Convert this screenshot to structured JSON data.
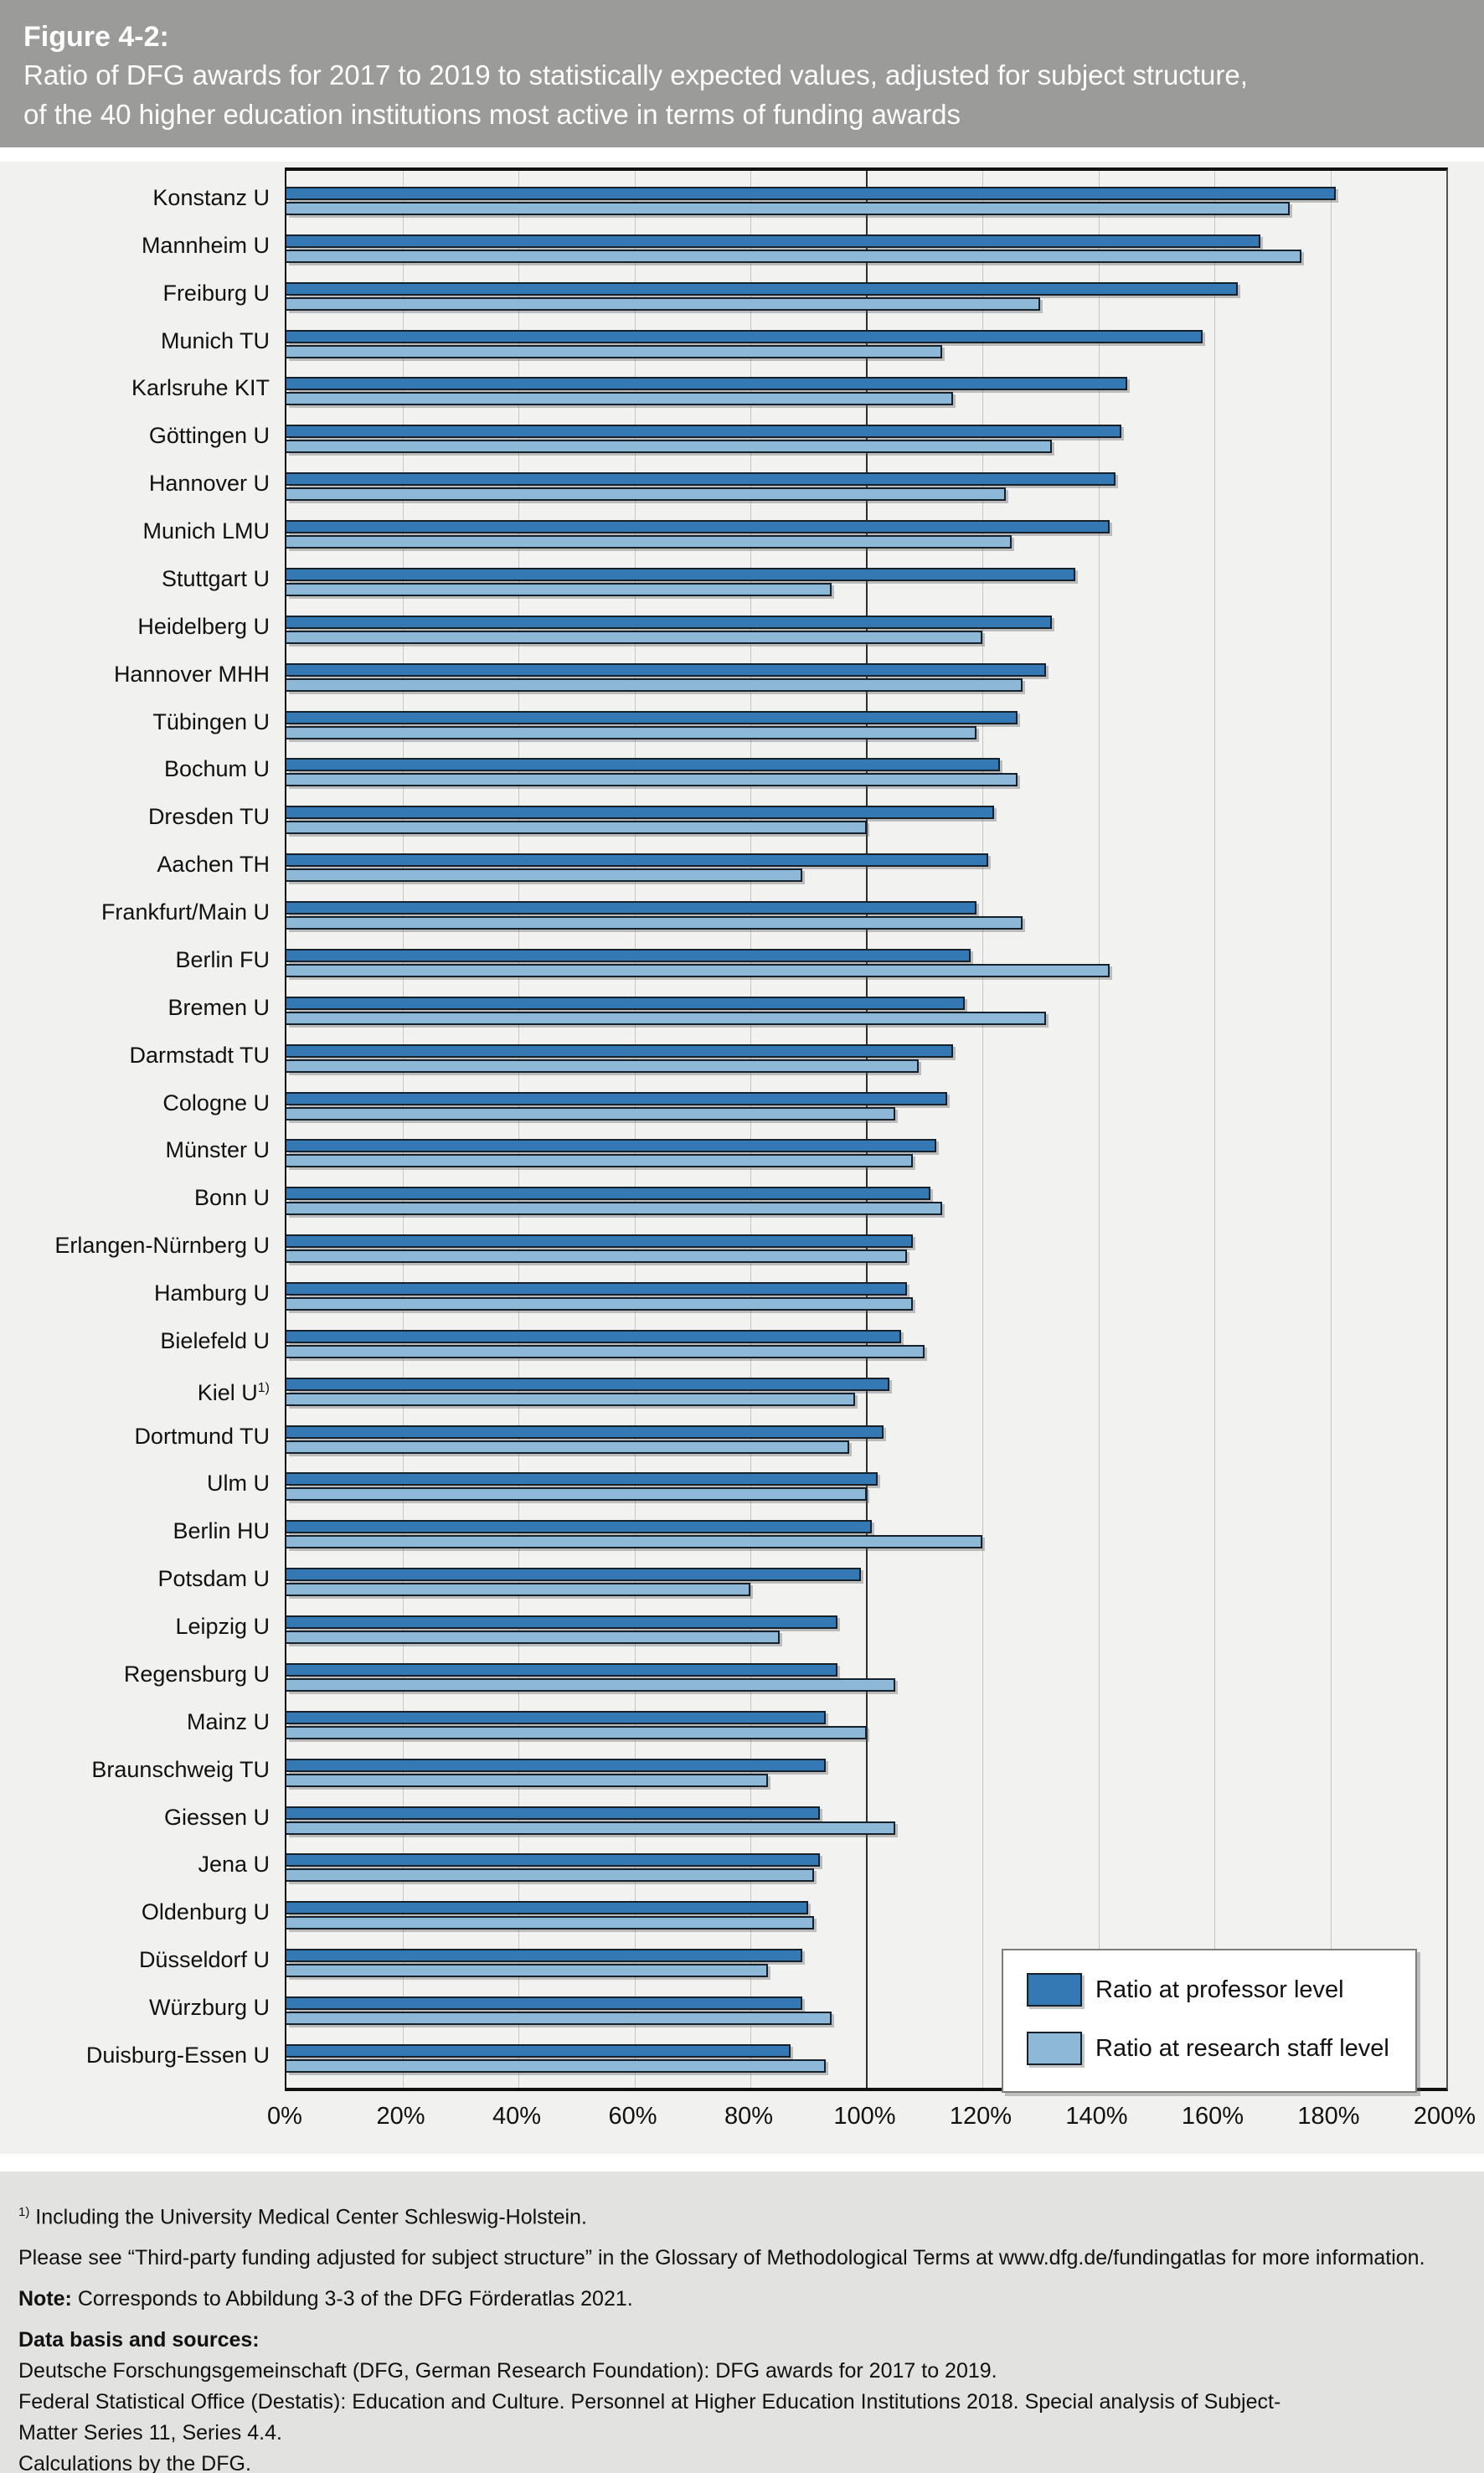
{
  "header": {
    "figure_label": "Figure 4-2:",
    "title_line1": "Ratio of DFG awards for 2017 to 2019 to statistically expected values, adjusted for subject structure,",
    "title_line2": "of the 40 higher education institutions most active in terms of funding awards"
  },
  "chart_data": {
    "type": "bar",
    "orientation": "horizontal",
    "title": "Ratio of DFG awards for 2017 to 2019 to statistically expected values, adjusted for subject structure, of the 40 higher education institutions most active in terms of funding awards",
    "xlabel": "",
    "ylabel": "",
    "xlim": [
      0,
      200
    ],
    "grid_step": 20,
    "reference_line": 100,
    "grid": true,
    "legend_position": "inside-bottom-right",
    "x_tick_labels": [
      "0%",
      "20%",
      "40%",
      "60%",
      "80%",
      "100%",
      "120%",
      "140%",
      "160%",
      "180%",
      "200%"
    ],
    "categories": [
      "Konstanz U",
      "Mannheim U",
      "Freiburg U",
      "Munich TU",
      "Karlsruhe KIT",
      "Göttingen U",
      "Hannover U",
      "Munich LMU",
      "Stuttgart U",
      "Heidelberg U",
      "Hannover MHH",
      "Tübingen U",
      "Bochum U",
      "Dresden TU",
      "Aachen TH",
      "Frankfurt/Main U",
      "Berlin FU",
      "Bremen U",
      "Darmstadt TU",
      "Cologne U",
      "Münster U",
      "Bonn U",
      "Erlangen-Nürnberg U",
      "Hamburg U",
      "Bielefeld U",
      "Kiel U",
      "Dortmund TU",
      "Ulm U",
      "Berlin HU",
      "Potsdam U",
      "Leipzig U",
      "Regensburg U",
      "Mainz U",
      "Braunschweig TU",
      "Giessen U",
      "Jena U",
      "Oldenburg U",
      "Düsseldorf U",
      "Würzburg U",
      "Duisburg-Essen U"
    ],
    "category_superscripts": {
      "25": "1)"
    },
    "series": [
      {
        "name": "Ratio at professor level",
        "color": "#3478b4",
        "values": [
          181,
          168,
          164,
          158,
          145,
          144,
          143,
          142,
          136,
          132,
          131,
          126,
          123,
          122,
          121,
          119,
          118,
          117,
          115,
          114,
          112,
          111,
          108,
          107,
          106,
          104,
          103,
          102,
          101,
          99,
          95,
          95,
          93,
          93,
          92,
          92,
          90,
          89,
          89,
          87
        ]
      },
      {
        "name": "Ratio at research staff level",
        "color": "#8db8d8",
        "values": [
          173,
          175,
          130,
          113,
          115,
          132,
          124,
          125,
          94,
          120,
          127,
          119,
          126,
          100,
          89,
          127,
          142,
          131,
          109,
          105,
          108,
          113,
          107,
          108,
          110,
          98,
          97,
          100,
          120,
          80,
          85,
          105,
          100,
          83,
          105,
          91,
          91,
          83,
          94,
          93
        ]
      }
    ]
  },
  "footnotes": [
    {
      "sup": "1)",
      "text": " Including the University Medical Center Schleswig-Holstein.",
      "spaced": true
    },
    {
      "text": "Please see “Third-party funding adjusted for subject structure” in the Glossary of Methodological Terms at www.dfg.de/fundingatlas for more information.",
      "spaced": true
    },
    {
      "bold": "Note:",
      "text": " Corresponds to Abbildung 3-3 of the DFG Förderatlas 2021.",
      "spaced": true
    },
    {
      "bold": "Data basis and sources:",
      "text": "",
      "spaced": false
    },
    {
      "text": "Deutsche Forschungsgemeinschaft (DFG, German Research Foundation): DFG awards for 2017 to 2019.",
      "spaced": false
    },
    {
      "text": "Federal Statistical Office (Destatis): Education and Culture. Personnel at Higher Education Institutions 2018. Special analysis of Subject-Matter Series 11, Series 4.4.",
      "spaced": false
    },
    {
      "text": "Calculations by the DFG.",
      "spaced": false
    }
  ]
}
